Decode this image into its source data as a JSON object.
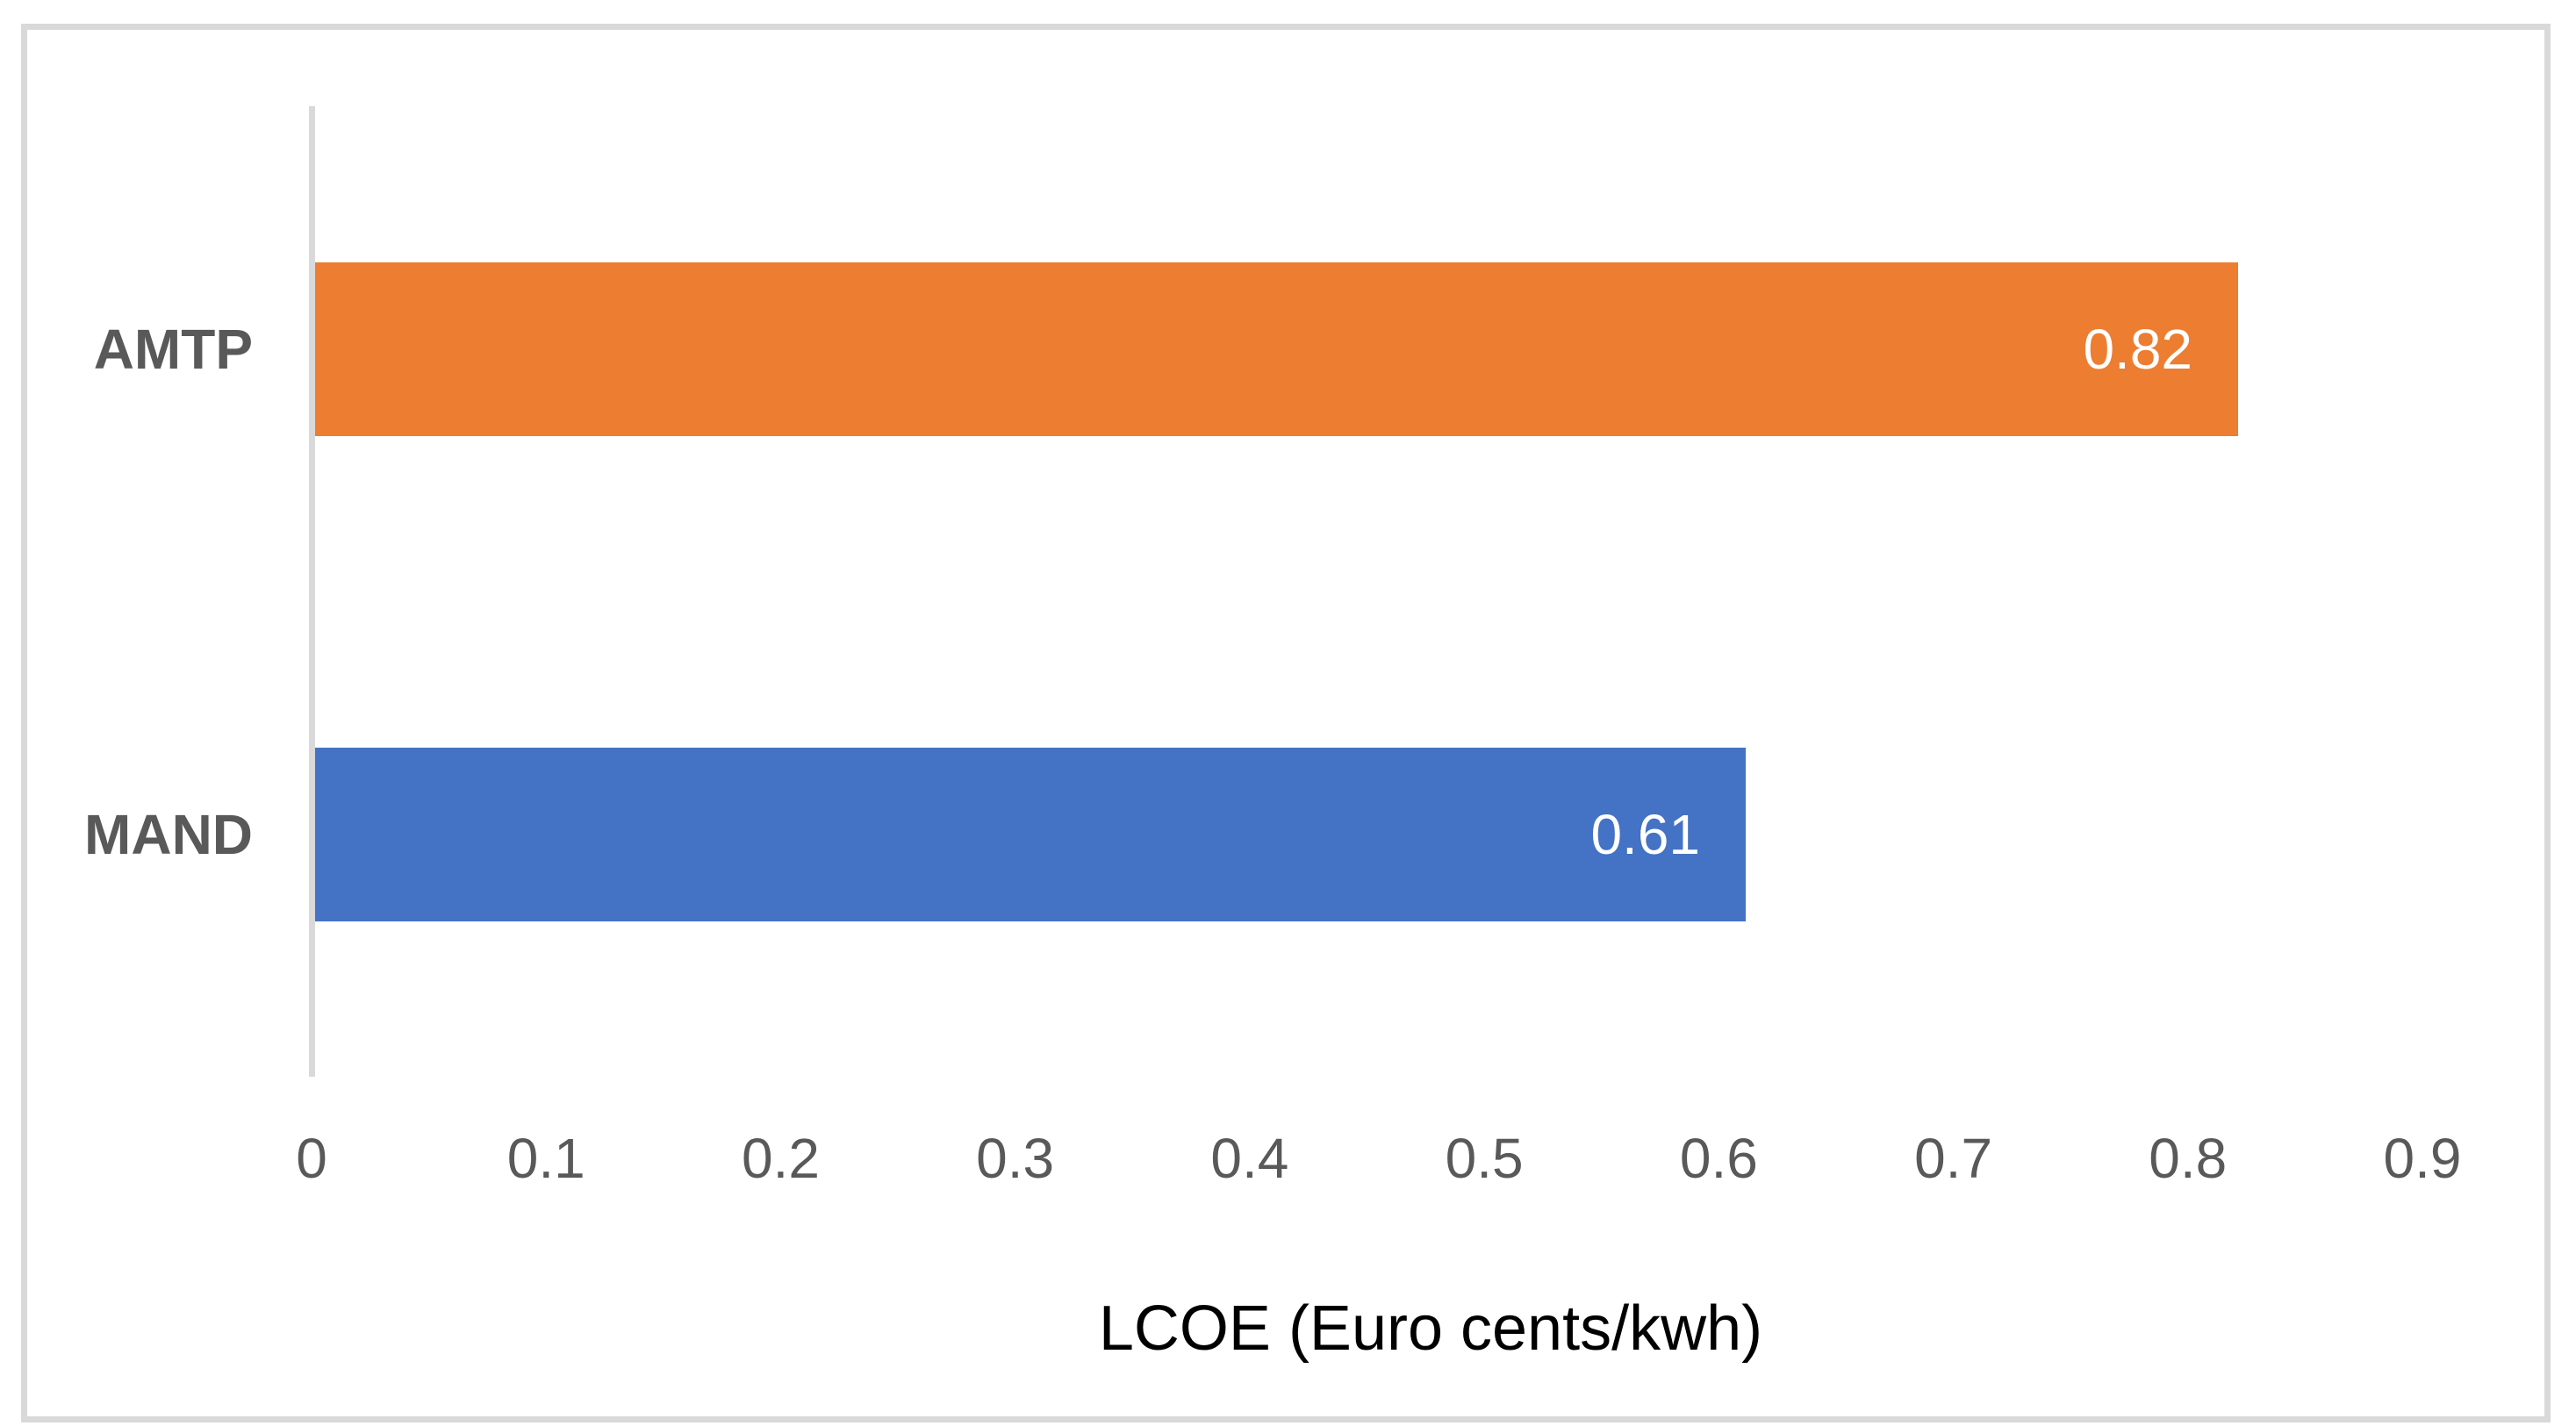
{
  "chart_data": {
    "type": "bar",
    "orientation": "horizontal",
    "title": "",
    "xlabel": "LCOE (Euro cents/kwh)",
    "ylabel": "",
    "categories": [
      "AMTP",
      "MAND"
    ],
    "values": [
      0.82,
      0.61
    ],
    "value_labels": [
      "0.82",
      "0.61"
    ],
    "bar_colors": [
      "#ED7D31",
      "#4472C4"
    ],
    "xlim": [
      0,
      0.9
    ],
    "xticks": [
      "0",
      "0.1",
      "0.2",
      "0.3",
      "0.4",
      "0.5",
      "0.6",
      "0.7",
      "0.8",
      "0.9"
    ],
    "grid": false,
    "legend": "none",
    "data_labels_position": "inside-end"
  },
  "colors": {
    "axis_line": "#D9D9D9",
    "frame_border": "#D9D9D9",
    "tick_label": "#595959",
    "category_label": "#595959",
    "data_label": "#FFFFFF",
    "axis_title": "#000000",
    "background": "#FFFFFF"
  }
}
